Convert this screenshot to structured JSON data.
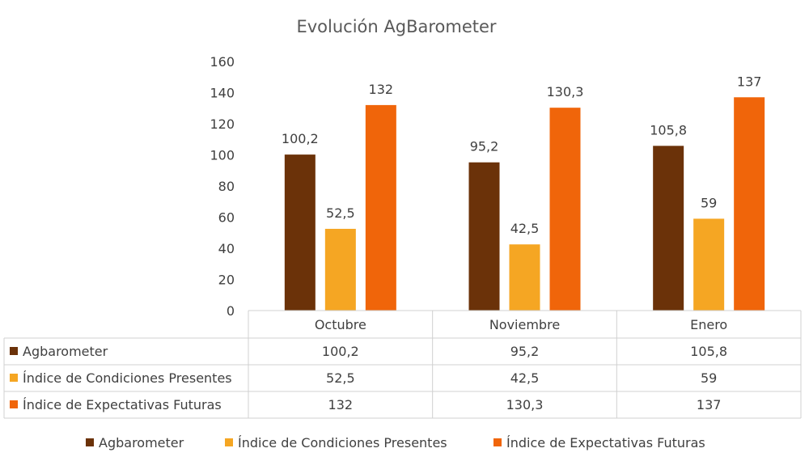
{
  "chart_data": {
    "type": "bar",
    "title": "Evolución AgBarometer",
    "categories": [
      "Octubre",
      "Noviembre",
      "Enero"
    ],
    "series": [
      {
        "name": "Agbarometer",
        "color": "#6B3209",
        "values": [
          100.2,
          95.2,
          105.8
        ],
        "labels": [
          "100,2",
          "95,2",
          "105,8"
        ]
      },
      {
        "name": "Índice de Condiciones Presentes",
        "color": "#F5A623",
        "values": [
          52.5,
          42.5,
          59
        ],
        "labels": [
          "52,5",
          "42,5",
          "59"
        ]
      },
      {
        "name": "Índice de Expectativas Futuras",
        "color": "#F0650A",
        "values": [
          132,
          130.3,
          137
        ],
        "labels": [
          "132",
          "130,3",
          "137"
        ]
      }
    ],
    "yticks": [
      "0",
      "20",
      "40",
      "60",
      "80",
      "100",
      "120",
      "140",
      "160"
    ],
    "ylim": [
      0,
      160
    ],
    "xlabel": "",
    "ylabel": "",
    "grid": false,
    "data_table": true,
    "legend": "bottom"
  }
}
